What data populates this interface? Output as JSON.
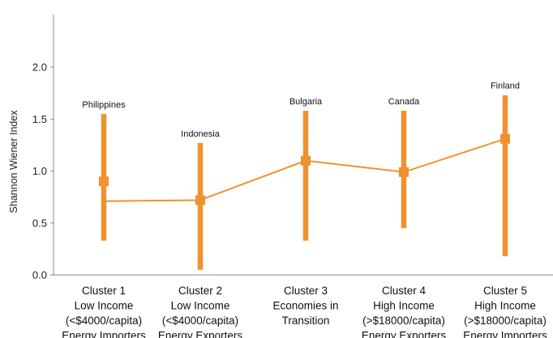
{
  "chart_data": {
    "type": "line",
    "ylabel": "Shannon Wiener Index",
    "xlabel": "",
    "title": "",
    "ylim": [
      0,
      2.4
    ],
    "yticks": [
      "0.0",
      "0.5",
      "1.0",
      "1.5",
      "2.0"
    ],
    "grid": false,
    "colors": {
      "series": "#f0912f",
      "axis": "#8a8a8a",
      "text": "#222222"
    },
    "categories": [
      {
        "lines": [
          "Cluster 1",
          "Low Income",
          "(<$4000/capita)",
          "Energy Importers"
        ]
      },
      {
        "lines": [
          "Cluster 2",
          "Low Income",
          "(<$4000/capita)",
          "Energy Exporters"
        ]
      },
      {
        "lines": [
          "Cluster 3",
          "Economies in",
          "Transition"
        ]
      },
      {
        "lines": [
          "Cluster 4",
          "High Income",
          "(>$18000/capita)",
          "Energy Exporters"
        ]
      },
      {
        "lines": [
          "Cluster 5",
          "High Income",
          "(>$18000/capita)",
          "Energy Importers"
        ]
      }
    ],
    "points": [
      {
        "mean": 0.9,
        "low": 0.33,
        "high": 1.55,
        "line_value": 0.71,
        "annotation": "Philippines"
      },
      {
        "mean": 0.72,
        "low": 0.05,
        "high": 1.27,
        "line_value": 0.72,
        "annotation": "Indonesia"
      },
      {
        "mean": 1.1,
        "low": 0.33,
        "high": 1.58,
        "line_value": 1.1,
        "annotation": "Bulgaria"
      },
      {
        "mean": 0.99,
        "low": 0.45,
        "high": 1.58,
        "line_value": 0.99,
        "annotation": "Canada"
      },
      {
        "mean": 1.31,
        "low": 0.18,
        "high": 1.73,
        "line_value": 1.31,
        "annotation": "Finland"
      }
    ]
  }
}
